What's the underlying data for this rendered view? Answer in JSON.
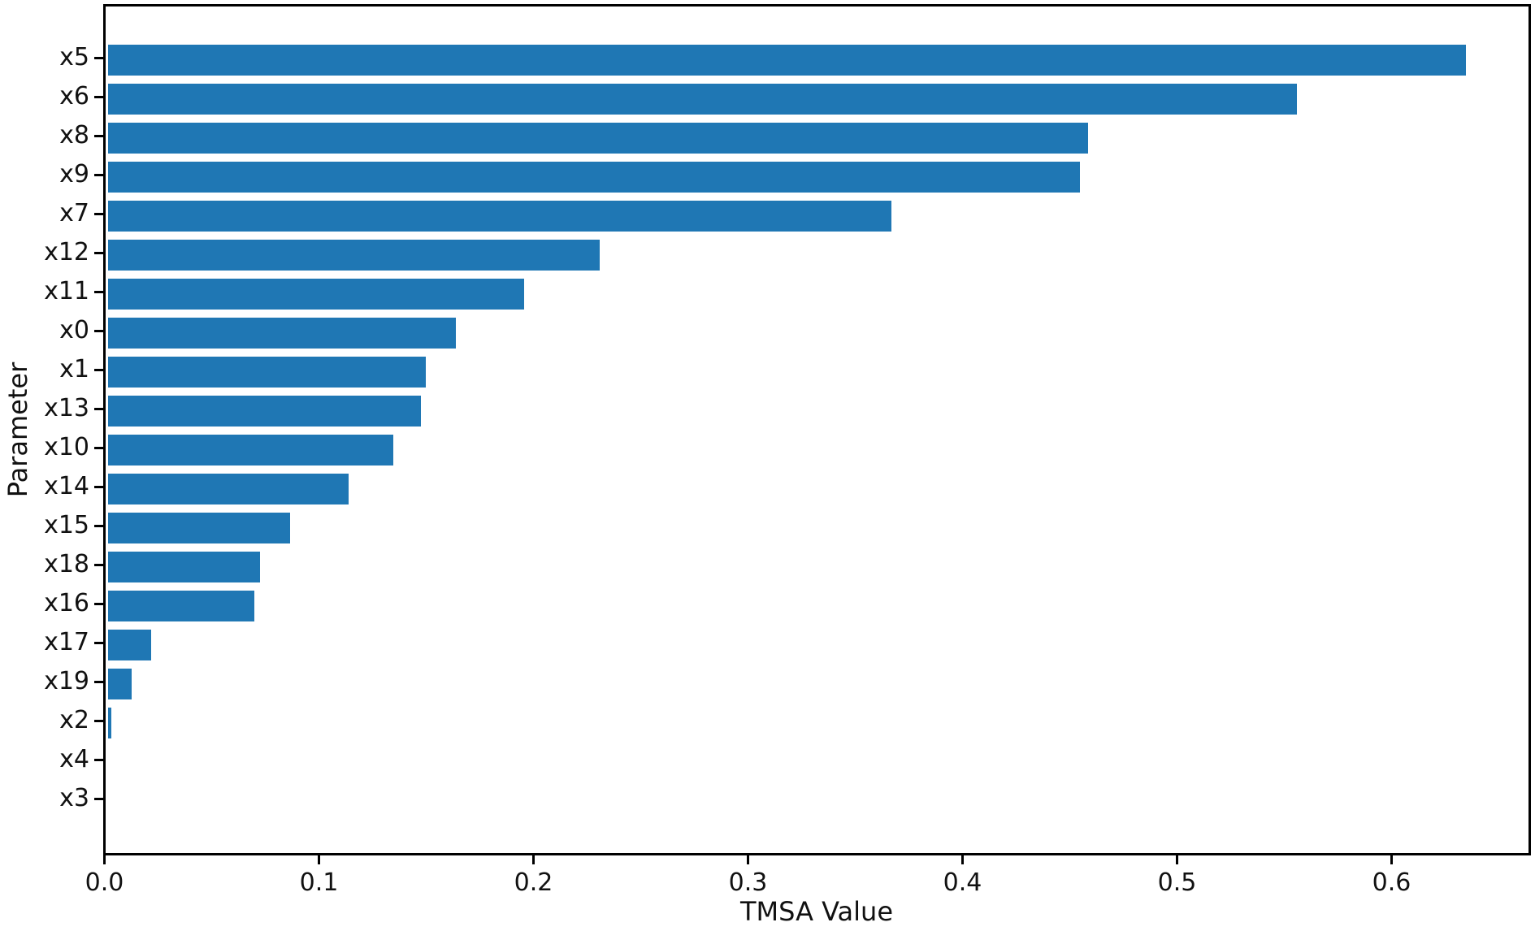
{
  "figure": {
    "background": "#ffffff",
    "text_color": "#111111"
  },
  "chart_data": {
    "type": "bar",
    "orientation": "horizontal",
    "title": "",
    "xlabel": "TMSA Value",
    "ylabel": "Parameter",
    "categories": [
      "x5",
      "x6",
      "x8",
      "x9",
      "x7",
      "x12",
      "x11",
      "x0",
      "x1",
      "x13",
      "x10",
      "x14",
      "x15",
      "x18",
      "x16",
      "x17",
      "x19",
      "x2",
      "x4",
      "x3"
    ],
    "values": [
      0.633,
      0.554,
      0.457,
      0.453,
      0.365,
      0.229,
      0.194,
      0.162,
      0.148,
      0.146,
      0.133,
      0.112,
      0.085,
      0.071,
      0.068,
      0.02,
      0.011,
      0.0015,
      0.0,
      0.0
    ],
    "xlim": [
      0.0,
      0.663
    ],
    "xticks": [
      0.0,
      0.1,
      0.2,
      0.3,
      0.4,
      0.5,
      0.6
    ],
    "xtick_labels": [
      "0.0",
      "0.1",
      "0.2",
      "0.3",
      "0.4",
      "0.5",
      "0.6"
    ],
    "bar_color": "#1f77b4",
    "grid": false,
    "legend": null
  }
}
